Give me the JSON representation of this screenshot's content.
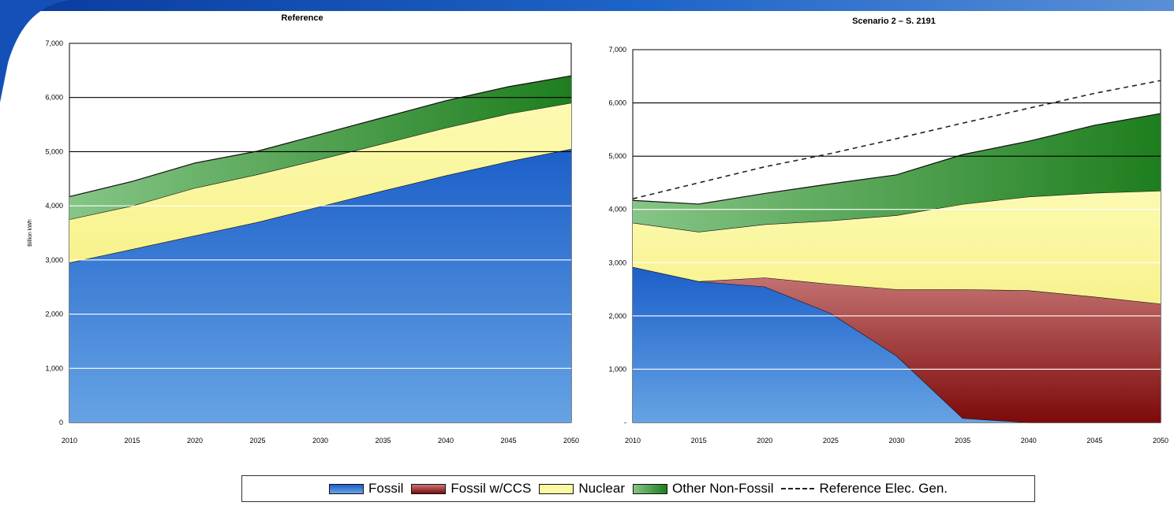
{
  "colors": {
    "fossil": "#2f74d6",
    "fossil_ccs": "#9e2222",
    "nuclear": "#fbfaa3",
    "other_non_fossil": "#3f9b3f",
    "reference_line": "#222222"
  },
  "chart_data": [
    {
      "type": "area",
      "title": "Reference",
      "xlabel": "",
      "ylabel": "Billion kWh",
      "ylim": [
        0,
        7000
      ],
      "x": [
        2010,
        2015,
        2020,
        2025,
        2030,
        2035,
        2040,
        2045,
        2050
      ],
      "y_ticks": [
        "0",
        "1,000",
        "2,000",
        "3,000",
        "4,000",
        "5,000",
        "6,000",
        "7,000"
      ],
      "x_ticks": [
        "2010",
        "2015",
        "2020",
        "2025",
        "2030",
        "2035",
        "2040",
        "2045",
        "2050"
      ],
      "stacked": true,
      "grid": true,
      "series": [
        {
          "name": "Fossil",
          "values": [
            2950,
            3200,
            3450,
            3700,
            3990,
            4280,
            4560,
            4820,
            5050
          ]
        },
        {
          "name": "Nuclear",
          "values": [
            800,
            800,
            880,
            880,
            870,
            870,
            880,
            880,
            850
          ]
        },
        {
          "name": "Other Non-Fossil",
          "values": [
            420,
            450,
            460,
            430,
            460,
            480,
            500,
            500,
            500
          ]
        }
      ]
    },
    {
      "type": "area",
      "title": "Scenario 2 – S. 2191",
      "xlabel": "",
      "ylabel": "",
      "ylim": [
        0,
        7000
      ],
      "x": [
        2010,
        2015,
        2020,
        2025,
        2030,
        2035,
        2040,
        2045,
        2050
      ],
      "y_ticks": [
        "-",
        "1,000",
        "2,000",
        "3,000",
        "4,000",
        "5,000",
        "6,000",
        "7,000"
      ],
      "x_ticks": [
        "2010",
        "2015",
        "2020",
        "2025",
        "2030",
        "2035",
        "2040",
        "2045",
        "2050"
      ],
      "stacked": true,
      "grid": true,
      "series": [
        {
          "name": "Fossil",
          "values": [
            2920,
            2650,
            2550,
            2050,
            1250,
            80,
            0,
            0,
            0
          ]
        },
        {
          "name": "Fossil w/CCS",
          "values": [
            0,
            0,
            170,
            550,
            1250,
            2420,
            2480,
            2360,
            2230
          ]
        },
        {
          "name": "Nuclear",
          "values": [
            830,
            930,
            1000,
            1190,
            1390,
            1600,
            1760,
            1950,
            2120
          ]
        },
        {
          "name": "Other Non-Fossil",
          "values": [
            420,
            520,
            580,
            690,
            760,
            930,
            1040,
            1270,
            1450
          ]
        },
        {
          "name": "Reference Elec. Gen.",
          "kind": "line",
          "values": [
            4200,
            4500,
            4800,
            5050,
            5330,
            5620,
            5900,
            6180,
            6420
          ]
        }
      ]
    }
  ],
  "legend": {
    "items": [
      {
        "label": "Fossil"
      },
      {
        "label": "Fossil w/CCS"
      },
      {
        "label": "Nuclear"
      },
      {
        "label": "Other Non-Fossil"
      },
      {
        "label": "Reference Elec. Gen."
      }
    ]
  }
}
